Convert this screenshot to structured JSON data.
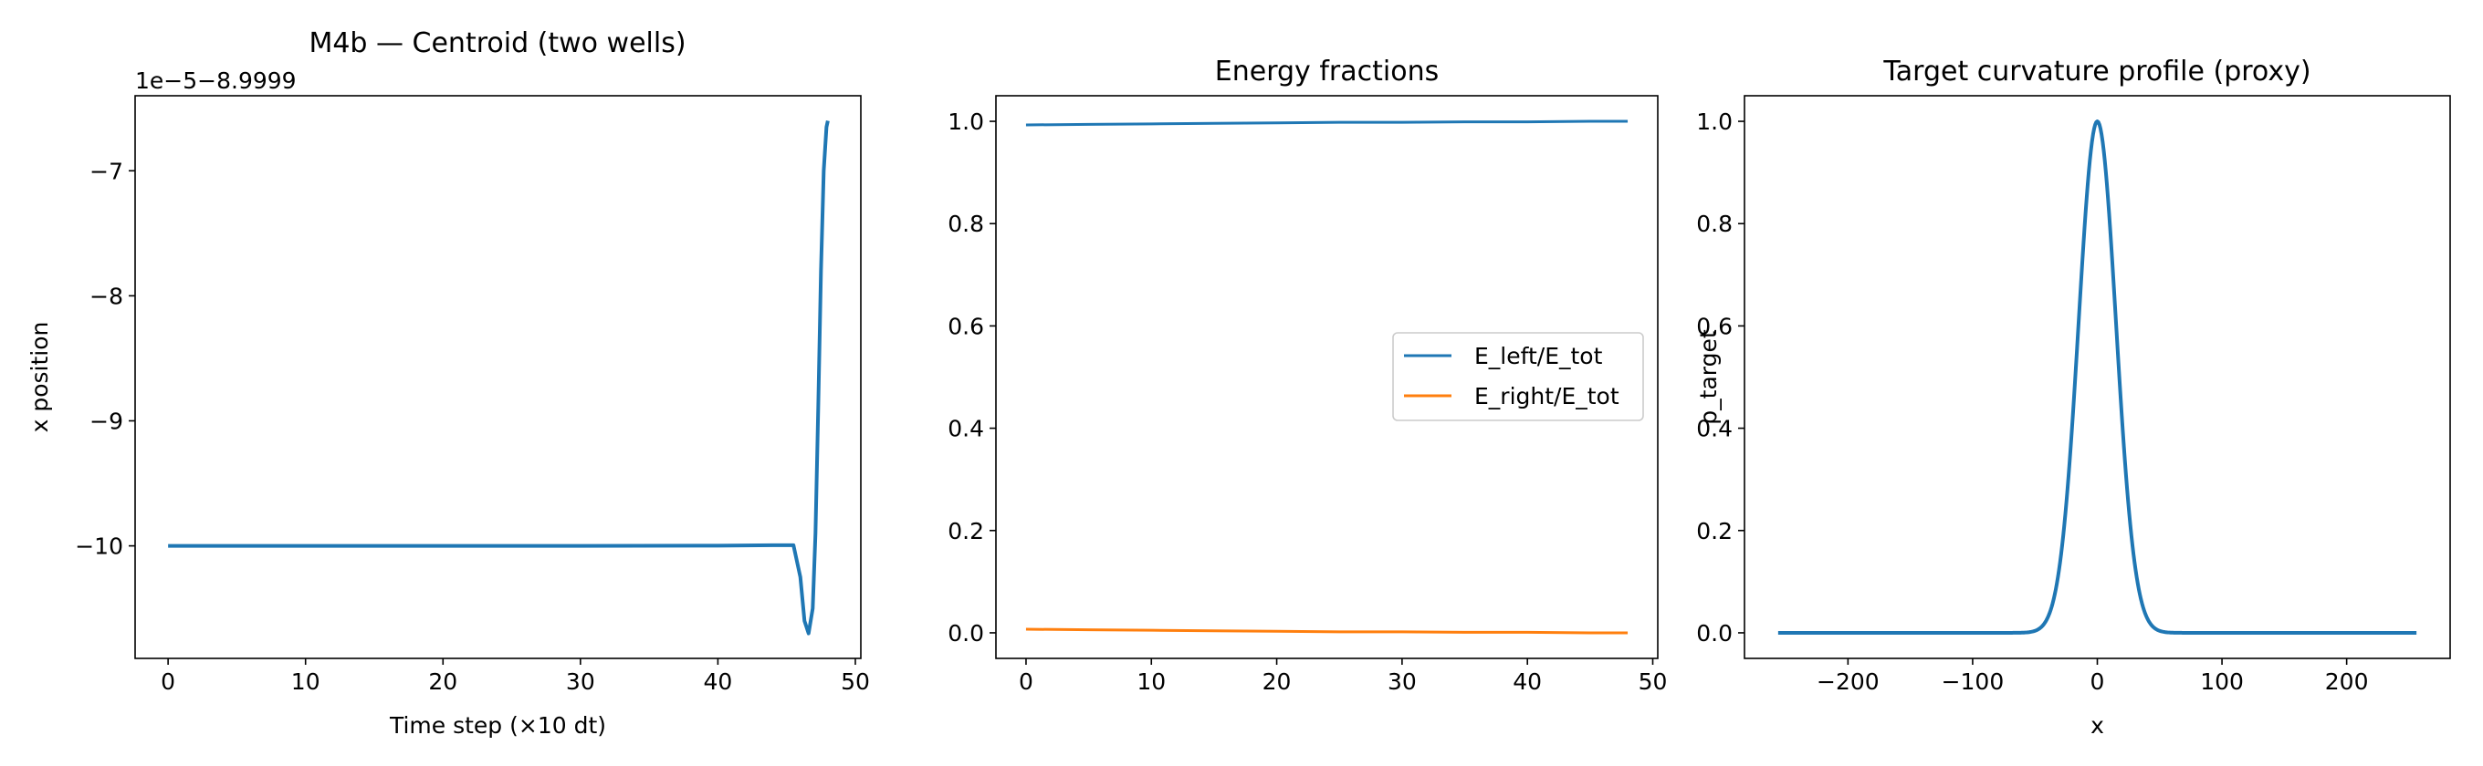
{
  "chart_data": [
    {
      "type": "line",
      "title": "M4b — Centroid (two wells)",
      "xlabel": "Time step (×10 dt)",
      "ylabel": "x position",
      "offset_text": "1e−5−8.9999",
      "xlim": [
        -2.4,
        50.4
      ],
      "ylim": [
        -10.9,
        -6.4
      ],
      "xticks": [
        0,
        10,
        20,
        30,
        40,
        50
      ],
      "xtick_labels": [
        "0",
        "10",
        "20",
        "30",
        "40",
        "50"
      ],
      "yticks": [
        -10,
        -9,
        -8,
        -7
      ],
      "ytick_labels": [
        "−10",
        "−9",
        "−8",
        "−7"
      ],
      "grid": false,
      "series": [
        {
          "color": "#1f77b4",
          "x": [
            0,
            10,
            20,
            30,
            40,
            44,
            45.5,
            46.0,
            46.3,
            46.6,
            46.9,
            47.1,
            47.3,
            47.5,
            47.7,
            47.9,
            48.0
          ],
          "y": [
            -10.0,
            -10.0,
            -10.0,
            -10.0,
            -9.998,
            -9.995,
            -9.995,
            -10.25,
            -10.6,
            -10.7,
            -10.5,
            -9.9,
            -8.9,
            -7.8,
            -7.0,
            -6.65,
            -6.6
          ]
        }
      ]
    },
    {
      "type": "line",
      "title": "Energy fractions",
      "xlabel": "",
      "ylabel": "",
      "xlim": [
        -2.4,
        50.4
      ],
      "ylim": [
        -0.05,
        1.05
      ],
      "xticks": [
        0,
        10,
        20,
        30,
        40,
        50
      ],
      "xtick_labels": [
        "0",
        "10",
        "20",
        "30",
        "40",
        "50"
      ],
      "yticks": [
        0.0,
        0.2,
        0.4,
        0.6,
        0.8,
        1.0
      ],
      "ytick_labels": [
        "0.0",
        "0.2",
        "0.4",
        "0.6",
        "0.8",
        "1.0"
      ],
      "grid": false,
      "legend": "center-right",
      "series": [
        {
          "name": "E_left/E_tot",
          "color": "#1f77b4",
          "x": [
            0,
            5,
            10,
            15,
            20,
            25,
            30,
            35,
            40,
            45,
            48
          ],
          "y": [
            0.993,
            0.994,
            0.995,
            0.996,
            0.997,
            0.998,
            0.998,
            0.999,
            0.999,
            1.0,
            1.0
          ]
        },
        {
          "name": "E_right/E_tot",
          "color": "#ff7f0e",
          "x": [
            0,
            5,
            10,
            15,
            20,
            25,
            30,
            35,
            40,
            45,
            48
          ],
          "y": [
            0.007,
            0.006,
            0.005,
            0.004,
            0.003,
            0.002,
            0.002,
            0.001,
            0.001,
            0.0,
            0.0
          ]
        }
      ]
    },
    {
      "type": "line",
      "title": "Target curvature profile (proxy)",
      "xlabel": "x",
      "ylabel": "ρ_target",
      "xlim": [
        -283,
        283
      ],
      "ylim": [
        -0.05,
        1.05
      ],
      "xticks": [
        -200,
        -100,
        0,
        100,
        200
      ],
      "xtick_labels": [
        "−200",
        "−100",
        "0",
        "100",
        "200"
      ],
      "yticks": [
        0.0,
        0.2,
        0.4,
        0.6,
        0.8,
        1.0
      ],
      "ytick_labels": [
        "0.0",
        "0.2",
        "0.4",
        "0.6",
        "0.8",
        "1.0"
      ],
      "grid": false,
      "series": [
        {
          "color": "#1f77b4",
          "curve": "gaussian",
          "x_range": [
            -256,
            256
          ],
          "center": 0,
          "sigma": 15,
          "amplitude": 1.0
        }
      ]
    }
  ]
}
